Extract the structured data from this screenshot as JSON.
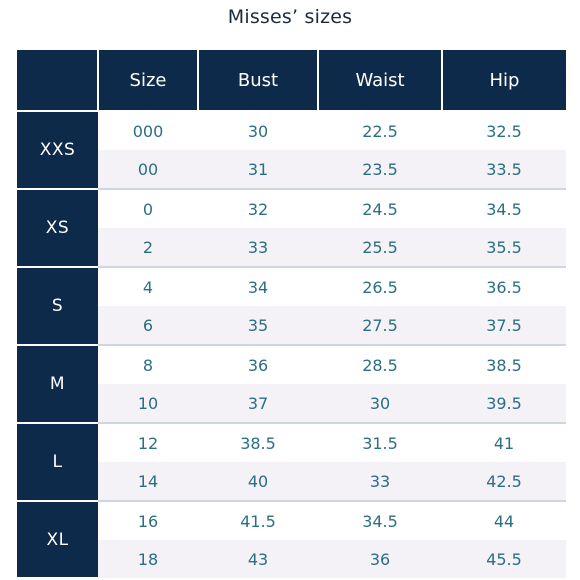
{
  "title": "Misses’ sizes",
  "headers": [
    "",
    "Size",
    "Bust",
    "Waist",
    "Hip"
  ],
  "groups": [
    {
      "label": "XXS",
      "rows": [
        [
          "000",
          "30",
          "22.5",
          "32.5"
        ],
        [
          "00",
          "31",
          "23.5",
          "33.5"
        ]
      ]
    },
    {
      "label": "XS",
      "rows": [
        [
          "0",
          "32",
          "24.5",
          "34.5"
        ],
        [
          "2",
          "33",
          "25.5",
          "35.5"
        ]
      ]
    },
    {
      "label": "S",
      "rows": [
        [
          "4",
          "34",
          "26.5",
          "36.5"
        ],
        [
          "6",
          "35",
          "27.5",
          "37.5"
        ]
      ]
    },
    {
      "label": "M",
      "rows": [
        [
          "8",
          "36",
          "28.5",
          "38.5"
        ],
        [
          "10",
          "37",
          "30",
          "39.5"
        ]
      ]
    },
    {
      "label": "L",
      "rows": [
        [
          "12",
          "38.5",
          "31.5",
          "41"
        ],
        [
          "14",
          "40",
          "33",
          "42.5"
        ]
      ]
    },
    {
      "label": "XL",
      "rows": [
        [
          "16",
          "41.5",
          "34.5",
          "44"
        ],
        [
          "18",
          "43",
          "36",
          "45.5"
        ]
      ]
    }
  ]
}
